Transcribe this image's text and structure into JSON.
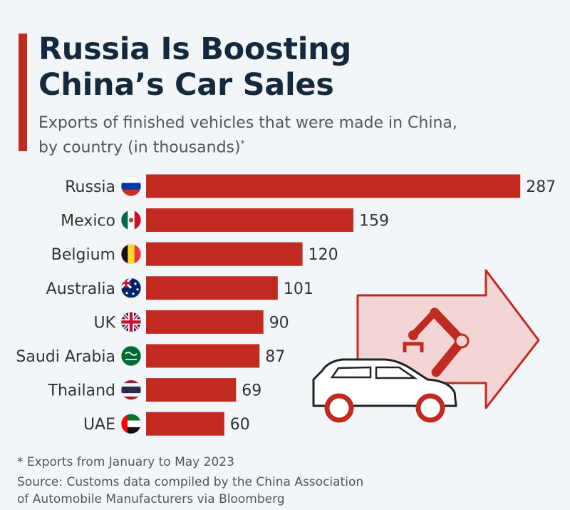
{
  "title_line1": "Russia Is Boosting",
  "title_line2": "China’s Car Sales",
  "subtitle_line1": "Exports of finished vehicles that were made in China,",
  "subtitle_line2": "by country (in thousands)",
  "subtitle_mark": "*",
  "colors": {
    "bar": "#c02a20",
    "title": "#15283c",
    "accent": "#c02a20"
  },
  "chart_data": {
    "type": "bar",
    "orientation": "horizontal",
    "categories": [
      "Russia",
      "Mexico",
      "Belgium",
      "Australia",
      "UK",
      "Saudi Arabia",
      "Thailand",
      "UAE"
    ],
    "values": [
      287,
      159,
      120,
      101,
      90,
      87,
      69,
      60
    ],
    "flags": [
      "russia-flag-icon",
      "mexico-flag-icon",
      "belgium-flag-icon",
      "australia-flag-icon",
      "uk-flag-icon",
      "saudi-arabia-flag-icon",
      "thailand-flag-icon",
      "uae-flag-icon"
    ],
    "data_labels": true,
    "grid": false
  },
  "footnote": "* Exports from January to May 2023",
  "source_line1": "Source: Customs data compiled by the China Association",
  "source_line2": "of Automobile Manufacturers via Bloomberg"
}
